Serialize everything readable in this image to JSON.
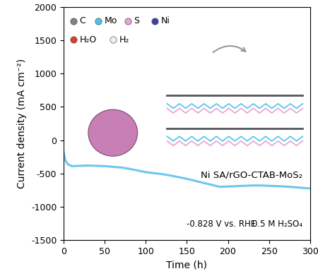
{
  "chart_data": {
    "type": "line",
    "x_label": "Time (h)",
    "y_label": "Current density (mA cm⁻²)",
    "xlim": [
      0,
      300
    ],
    "xticks": [
      0,
      50,
      100,
      150,
      200,
      250,
      300
    ],
    "ylim": [
      -1500,
      2000
    ],
    "yticks": [
      -1500,
      -1000,
      -500,
      0,
      500,
      1000,
      1500,
      2000
    ],
    "grid": false,
    "series": [
      {
        "name": "Ni SA/rGO-CTAB-MoS₂",
        "color": "#6ec6f0",
        "line_style": "solid",
        "x": [
          0,
          2,
          5,
          10,
          20,
          30,
          40,
          50,
          60,
          70,
          80,
          90,
          100,
          110,
          120,
          130,
          140,
          150,
          160,
          170,
          180,
          190,
          200,
          210,
          220,
          230,
          240,
          250,
          260,
          270,
          280,
          290,
          300
        ],
        "values": [
          -180,
          -300,
          -360,
          -390,
          -385,
          -380,
          -385,
          -390,
          -400,
          -410,
          -430,
          -455,
          -480,
          -495,
          -510,
          -530,
          -555,
          -580,
          -610,
          -640,
          -670,
          -700,
          -695,
          -690,
          -685,
          -680,
          -680,
          -685,
          -690,
          -695,
          -705,
          -715,
          -725
        ]
      }
    ],
    "annotations": [
      "-0.828 V vs. RHE",
      "0.5 M H₂SO₄"
    ],
    "atoms": [
      {
        "name": "C",
        "color": "#808080"
      },
      {
        "name": "Mo",
        "color": "#4fc3e8"
      },
      {
        "name": "S",
        "color": "#e8a0d8"
      },
      {
        "name": "Ni",
        "color": "#3f3fa8"
      },
      {
        "name": "H₂O",
        "color": "#e03a2a"
      },
      {
        "name": "H₂",
        "color": "#f0f0f0"
      }
    ]
  }
}
